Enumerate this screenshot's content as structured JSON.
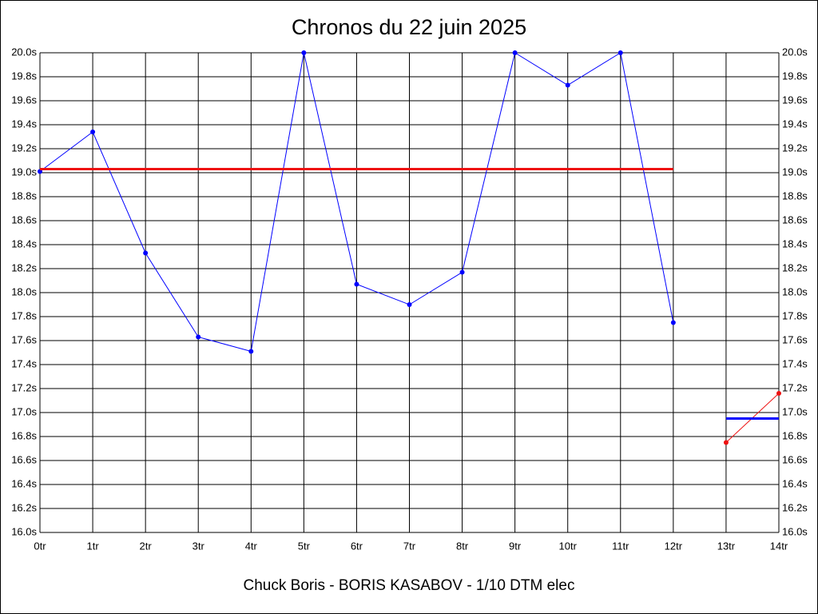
{
  "chart_data": {
    "type": "line",
    "title": "Chronos du 22 juin 2025",
    "xlabel": "Chuck Boris - BORIS KASABOV - 1/10 DTM elec",
    "x": [
      0,
      1,
      2,
      3,
      4,
      5,
      6,
      7,
      8,
      9,
      10,
      11,
      12,
      13,
      14
    ],
    "series": [
      {
        "color": "#0000ff",
        "line_width": 1,
        "markers": true,
        "values": [
          19.01,
          19.34,
          18.33,
          17.63,
          17.51,
          20.0,
          18.07,
          17.9,
          18.17,
          20.0,
          19.73,
          20.0,
          17.75,
          null,
          null
        ]
      },
      {
        "color": "#ee1111",
        "line_width": 3,
        "markers": false,
        "values": [
          19.03,
          19.03,
          19.03,
          19.03,
          19.03,
          19.03,
          19.03,
          19.03,
          19.03,
          19.03,
          19.03,
          19.03,
          19.03,
          null,
          null
        ]
      },
      {
        "color": "#ee1111",
        "line_width": 1,
        "markers": true,
        "values": [
          null,
          null,
          null,
          null,
          null,
          null,
          null,
          null,
          null,
          null,
          null,
          null,
          null,
          16.75,
          17.16
        ]
      },
      {
        "color": "#0000ff",
        "line_width": 3,
        "markers": false,
        "values": [
          null,
          null,
          null,
          null,
          null,
          null,
          null,
          null,
          null,
          null,
          null,
          null,
          null,
          16.95,
          16.95
        ]
      }
    ],
    "xlim": [
      0,
      14
    ],
    "xticks": [
      {
        "value": 0,
        "label": "0tr"
      },
      {
        "value": 1,
        "label": "1tr"
      },
      {
        "value": 2,
        "label": "2tr"
      },
      {
        "value": 3,
        "label": "3tr"
      },
      {
        "value": 4,
        "label": "4tr"
      },
      {
        "value": 5,
        "label": "5tr"
      },
      {
        "value": 6,
        "label": "6tr"
      },
      {
        "value": 7,
        "label": "7tr"
      },
      {
        "value": 8,
        "label": "8tr"
      },
      {
        "value": 9,
        "label": "9tr"
      },
      {
        "value": 10,
        "label": "10tr"
      },
      {
        "value": 11,
        "label": "11tr"
      },
      {
        "value": 12,
        "label": "12tr"
      },
      {
        "value": 13,
        "label": "13tr"
      },
      {
        "value": 14,
        "label": "14tr"
      }
    ],
    "ylim": [
      16.0,
      20.0
    ],
    "yticks": [
      {
        "value": 16.0,
        "label": "16.0s"
      },
      {
        "value": 16.2,
        "label": "16.2s"
      },
      {
        "value": 16.4,
        "label": "16.4s"
      },
      {
        "value": 16.6,
        "label": "16.6s"
      },
      {
        "value": 16.8,
        "label": "16.8s"
      },
      {
        "value": 17.0,
        "label": "17.0s"
      },
      {
        "value": 17.2,
        "label": "17.2s"
      },
      {
        "value": 17.4,
        "label": "17.4s"
      },
      {
        "value": 17.6,
        "label": "17.6s"
      },
      {
        "value": 17.8,
        "label": "17.8s"
      },
      {
        "value": 18.0,
        "label": "18.0s"
      },
      {
        "value": 18.2,
        "label": "18.2s"
      },
      {
        "value": 18.4,
        "label": "18.4s"
      },
      {
        "value": 18.6,
        "label": "18.6s"
      },
      {
        "value": 18.8,
        "label": "18.8s"
      },
      {
        "value": 19.0,
        "label": "19.0s"
      },
      {
        "value": 19.2,
        "label": "19.2s"
      },
      {
        "value": 19.4,
        "label": "19.4s"
      },
      {
        "value": 19.6,
        "label": "19.6s"
      },
      {
        "value": 19.8,
        "label": "19.8s"
      },
      {
        "value": 20.0,
        "label": "20.0s"
      }
    ],
    "grid": true
  }
}
